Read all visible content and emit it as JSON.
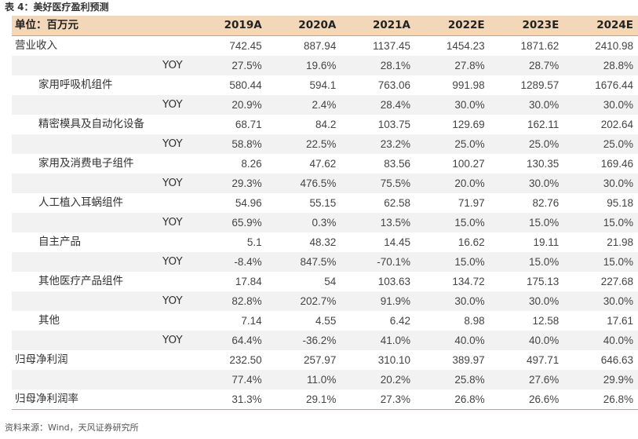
{
  "title": "表 4：美好医疗盈利预测",
  "table": {
    "header": [
      "单位：百万元",
      "2019A",
      "2020A",
      "2021A",
      "2022E",
      "2023E",
      "2024E"
    ],
    "rows": [
      {
        "label": "营业收入",
        "kind": "main",
        "shade": false,
        "values": [
          "742.45",
          "887.94",
          "1137.45",
          "1454.23",
          "1871.62",
          "2410.98"
        ]
      },
      {
        "label": "YOY",
        "kind": "yoy",
        "shade": true,
        "values": [
          "27.5%",
          "19.6%",
          "28.1%",
          "27.8%",
          "28.7%",
          "28.8%"
        ]
      },
      {
        "label": "家用呼吸机组件",
        "kind": "sub",
        "shade": false,
        "values": [
          "580.44",
          "594.1",
          "763.06",
          "991.98",
          "1289.57",
          "1676.44"
        ]
      },
      {
        "label": "YOY",
        "kind": "yoy",
        "shade": true,
        "values": [
          "20.9%",
          "2.4%",
          "28.4%",
          "30.0%",
          "30.0%",
          "30.0%"
        ]
      },
      {
        "label": "精密模具及自动化设备",
        "kind": "sub",
        "shade": false,
        "values": [
          "68.71",
          "84.2",
          "103.75",
          "129.69",
          "162.11",
          "202.64"
        ]
      },
      {
        "label": "YOY",
        "kind": "yoy",
        "shade": true,
        "values": [
          "58.8%",
          "22.5%",
          "23.2%",
          "25.0%",
          "25.0%",
          "25.0%"
        ]
      },
      {
        "label": "家用及消费电子组件",
        "kind": "sub",
        "shade": false,
        "values": [
          "8.26",
          "47.62",
          "83.56",
          "100.27",
          "130.35",
          "169.46"
        ]
      },
      {
        "label": "YOY",
        "kind": "yoy",
        "shade": true,
        "values": [
          "29.3%",
          "476.5%",
          "75.5%",
          "20.0%",
          "30.0%",
          "30.0%"
        ]
      },
      {
        "label": "人工植入耳蜗组件",
        "kind": "sub",
        "shade": false,
        "values": [
          "54.96",
          "55.15",
          "62.58",
          "71.97",
          "82.76",
          "95.18"
        ]
      },
      {
        "label": "YOY",
        "kind": "yoy",
        "shade": true,
        "values": [
          "65.9%",
          "0.3%",
          "13.5%",
          "15.0%",
          "15.0%",
          "15.0%"
        ]
      },
      {
        "label": "自主产品",
        "kind": "sub",
        "shade": false,
        "values": [
          "5.1",
          "48.32",
          "14.45",
          "16.62",
          "19.11",
          "21.98"
        ]
      },
      {
        "label": "YOY",
        "kind": "yoy",
        "shade": true,
        "values": [
          "-8.4%",
          "847.5%",
          "-70.1%",
          "15.0%",
          "15.0%",
          "15.0%"
        ]
      },
      {
        "label": "其他医疗产品组件",
        "kind": "sub",
        "shade": false,
        "values": [
          "17.84",
          "54",
          "103.63",
          "134.72",
          "175.13",
          "227.68"
        ]
      },
      {
        "label": "YOY",
        "kind": "yoy",
        "shade": true,
        "values": [
          "82.8%",
          "202.7%",
          "91.9%",
          "30.0%",
          "30.0%",
          "30.0%"
        ]
      },
      {
        "label": "其他",
        "kind": "sub",
        "shade": false,
        "values": [
          "7.14",
          "4.55",
          "6.42",
          "8.98",
          "12.58",
          "17.61"
        ]
      },
      {
        "label": "YOY",
        "kind": "yoy",
        "shade": true,
        "values": [
          "64.4%",
          "-36.2%",
          "41.0%",
          "40.0%",
          "40.0%",
          "40.0%"
        ]
      },
      {
        "label": "归母净利润",
        "kind": "main",
        "shade": false,
        "values": [
          "232.50",
          "257.97",
          "310.10",
          "389.97",
          "497.71",
          "646.63"
        ]
      },
      {
        "label": "",
        "kind": "main",
        "shade": true,
        "values": [
          "77.4%",
          "11.0%",
          "20.2%",
          "25.8%",
          "27.6%",
          "29.9%"
        ]
      },
      {
        "label": "归母净利润率",
        "kind": "main",
        "shade": false,
        "values": [
          "31.3%",
          "29.1%",
          "27.3%",
          "26.8%",
          "26.6%",
          "26.8%"
        ]
      }
    ]
  },
  "source": "资料来源：Wind，天风证券研究所",
  "colors": {
    "header_bg": "#f3d7b9",
    "shade_bg": "#f2f2f2",
    "rule": "#c9a27c"
  }
}
